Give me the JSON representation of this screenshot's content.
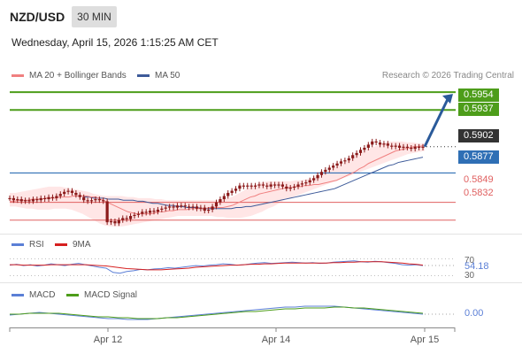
{
  "header": {
    "pair": "NZD/USD",
    "timeframe": "30 MIN",
    "datetime": "Wednesday, April 15, 2026 1:15:25 AM CET"
  },
  "legend": {
    "ma20_label": "MA 20 + Bollinger Bands",
    "ma50_label": "MA 50",
    "credit": "Research © 2026 Trading Central",
    "rsi_label": "RSI",
    "rsi_ma_label": "9MA",
    "macd_label": "MACD",
    "macd_signal_label": "MACD Signal"
  },
  "colors": {
    "ma20": "#f08080",
    "ma50": "#3d5a99",
    "bollinger_fill": "#ffe2e2",
    "resistance": "#4d9d1a",
    "pivot": "#2f6fb5",
    "support": "#e06060",
    "candle": "#8b1a1a",
    "arrow": "#2a5a9a",
    "rsi": "#5b7fd6",
    "rsi_ma": "#d62020",
    "macd": "#5b7fd6",
    "macd_signal": "#4d9d1a"
  },
  "levels": {
    "resistance_2": "0.5954",
    "resistance_1": "0.5937",
    "last_price": "0.5902",
    "pivot": "0.5877",
    "support_1": "0.5849",
    "support_2": "0.5832"
  },
  "indicators": {
    "rsi_value": "54.18",
    "rsi_upper": "70",
    "rsi_lower": "30",
    "macd_value": "0.00"
  },
  "x_axis": {
    "labels": [
      "Apr 12",
      "Apr 14",
      "Apr 15"
    ]
  },
  "chart_data": {
    "type": "line",
    "title": "NZD/USD",
    "subtitle": "30 MIN",
    "ylim": [
      0.582,
      0.596
    ],
    "price_close": [
      0.5853,
      0.5851,
      0.5852,
      0.585,
      0.5851,
      0.585,
      0.5852,
      0.5851,
      0.5853,
      0.5852,
      0.5854,
      0.5853,
      0.5855,
      0.5857,
      0.5859,
      0.586,
      0.5858,
      0.5856,
      0.5854,
      0.5851,
      0.585,
      0.5851,
      0.5852,
      0.5851,
      0.585,
      0.583,
      0.5831,
      0.5829,
      0.5832,
      0.5834,
      0.5833,
      0.5836,
      0.5837,
      0.5838,
      0.584,
      0.5839,
      0.5841,
      0.584,
      0.5842,
      0.5843,
      0.5844,
      0.5845,
      0.5844,
      0.5846,
      0.5846,
      0.5845,
      0.5844,
      0.5845,
      0.5843,
      0.5844,
      0.5841,
      0.5842,
      0.5845,
      0.5849,
      0.5852,
      0.5855,
      0.5858,
      0.586,
      0.5862,
      0.5865,
      0.5864,
      0.5865,
      0.5864,
      0.5865,
      0.5866,
      0.5865,
      0.5864,
      0.5866,
      0.5865,
      0.5866,
      0.5864,
      0.5862,
      0.5863,
      0.5864,
      0.5866,
      0.5867,
      0.5868,
      0.587,
      0.5872,
      0.5875,
      0.5878,
      0.588,
      0.5882,
      0.5884,
      0.5886,
      0.5888,
      0.5889,
      0.5891,
      0.5894,
      0.5896,
      0.5899,
      0.5901,
      0.5904,
      0.5907,
      0.5906,
      0.5904,
      0.5905,
      0.5903,
      0.5902,
      0.5903,
      0.5901,
      0.5902,
      0.5901,
      0.59,
      0.5902,
      0.5901,
      0.5902
    ],
    "ma20": [
      0.585,
      0.585,
      0.5851,
      0.5851,
      0.5851,
      0.5852,
      0.5852,
      0.5852,
      0.5853,
      0.5853,
      0.5853,
      0.5854,
      0.5854,
      0.5854,
      0.5855,
      0.5855,
      0.5855,
      0.5855,
      0.5854,
      0.5854,
      0.5852,
      0.585,
      0.5848,
      0.5846,
      0.5844,
      0.5842,
      0.584,
      0.5839,
      0.5838,
      0.5838,
      0.5838,
      0.5838,
      0.5839,
      0.584,
      0.584,
      0.5841,
      0.5841,
      0.5842,
      0.5842,
      0.5842,
      0.5843,
      0.5843,
      0.5843,
      0.5843,
      0.5844,
      0.5844,
      0.5844,
      0.5844,
      0.5845,
      0.5846,
      0.5848,
      0.585,
      0.5852,
      0.5854,
      0.5855,
      0.5857,
      0.5858,
      0.5859,
      0.586,
      0.5861,
      0.5862,
      0.5863,
      0.5863,
      0.5864,
      0.5864,
      0.5865,
      0.5865,
      0.5866,
      0.5866,
      0.5867,
      0.5868,
      0.5869,
      0.587,
      0.5872,
      0.5874,
      0.5876,
      0.5878,
      0.5881,
      0.5883,
      0.5886,
      0.5888,
      0.589,
      0.5892,
      0.5894,
      0.5896,
      0.5898,
      0.5899,
      0.59,
      0.5901,
      0.5902,
      0.5902,
      0.5903
    ],
    "ma50": [
      0.5854,
      0.5854,
      0.5853,
      0.5853,
      0.5853,
      0.5852,
      0.5852,
      0.5852,
      0.5851,
      0.5851,
      0.5851,
      0.585,
      0.585,
      0.5849,
      0.5848,
      0.5848,
      0.5847,
      0.5846,
      0.5846,
      0.5845,
      0.5845,
      0.5844,
      0.5844,
      0.5844,
      0.5843,
      0.5843,
      0.5843,
      0.5843,
      0.5843,
      0.5843,
      0.5843,
      0.5844,
      0.5844,
      0.5845,
      0.5845,
      0.5846,
      0.5847,
      0.5848,
      0.5849,
      0.585,
      0.5851,
      0.5852,
      0.5853,
      0.5854,
      0.5855,
      0.5856,
      0.5857,
      0.5858,
      0.5859,
      0.586,
      0.5861,
      0.5862,
      0.5864,
      0.5866,
      0.5868,
      0.587,
      0.5872,
      0.5874,
      0.5876,
      0.5878,
      0.588,
      0.5882,
      0.5884,
      0.5885,
      0.5887,
      0.5888,
      0.5889,
      0.589,
      0.5891,
      0.5892
    ],
    "bb_upper": [
      0.5858,
      0.5858,
      0.5859,
      0.586,
      0.5861,
      0.5862,
      0.5863,
      0.5864,
      0.5864,
      0.5864,
      0.5863,
      0.5862,
      0.5861,
      0.586,
      0.5859,
      0.5857,
      0.5856,
      0.5855,
      0.5855,
      0.5855,
      0.5855,
      0.5854,
      0.5854,
      0.5853,
      0.5853,
      0.5853,
      0.5852,
      0.5852,
      0.5851,
      0.5851,
      0.5851,
      0.5851,
      0.5851,
      0.5851,
      0.5851,
      0.5851,
      0.5851,
      0.5851,
      0.5852,
      0.5853,
      0.5855,
      0.5858,
      0.5861,
      0.5864,
      0.5866,
      0.5868,
      0.5869,
      0.5869,
      0.5869,
      0.5869,
      0.5869,
      0.587,
      0.587,
      0.5871,
      0.5872,
      0.5874,
      0.5876,
      0.5879,
      0.5882,
      0.5885,
      0.5888,
      0.5891,
      0.5894,
      0.5897,
      0.59,
      0.5902,
      0.5904,
      0.5906,
      0.5907,
      0.5907,
      0.5907,
      0.5906,
      0.5906,
      0.5905,
      0.5905
    ],
    "bb_lower": [
      0.5845,
      0.5845,
      0.5844,
      0.5843,
      0.5843,
      0.5842,
      0.5842,
      0.5842,
      0.5843,
      0.5843,
      0.5843,
      0.5842,
      0.584,
      0.5838,
      0.5835,
      0.5832,
      0.5829,
      0.5827,
      0.5826,
      0.5826,
      0.5826,
      0.5827,
      0.5828,
      0.5829,
      0.583,
      0.5831,
      0.5832,
      0.5833,
      0.5834,
      0.5835,
      0.5836,
      0.5836,
      0.5836,
      0.5836,
      0.5836,
      0.5836,
      0.5836,
      0.5835,
      0.5835,
      0.5834,
      0.5834,
      0.5834,
      0.5835,
      0.5836,
      0.5838,
      0.584,
      0.5843,
      0.5845,
      0.5848,
      0.5851,
      0.5853,
      0.5855,
      0.5857,
      0.5859,
      0.5861,
      0.5863,
      0.5865,
      0.5867,
      0.5869,
      0.5871,
      0.5873,
      0.5875,
      0.5877,
      0.5879,
      0.5881,
      0.5883,
      0.5885,
      0.5887,
      0.5889,
      0.5891,
      0.5893,
      0.5895,
      0.5896,
      0.5897,
      0.5898
    ],
    "rsi": [
      55,
      57,
      54,
      56,
      53,
      55,
      58,
      56,
      54,
      57,
      59,
      56,
      53,
      50,
      48,
      38,
      36,
      40,
      42,
      45,
      44,
      46,
      47,
      49,
      48,
      50,
      52,
      54,
      53,
      55,
      56,
      58,
      57,
      55,
      56,
      58,
      60,
      61,
      59,
      60,
      61,
      62,
      61,
      60,
      61,
      59,
      60,
      62,
      63,
      64,
      65,
      63,
      62,
      64,
      63,
      61,
      59,
      56,
      55,
      56,
      54
    ],
    "rsi_ma": [
      56,
      56,
      55,
      55,
      55,
      55,
      56,
      56,
      56,
      56,
      56,
      56,
      55,
      54,
      53,
      51,
      49,
      47,
      46,
      45,
      44,
      44,
      44,
      45,
      46,
      47,
      48,
      50,
      51,
      52,
      53,
      54,
      55,
      55,
      56,
      57,
      57,
      58,
      58,
      59,
      60,
      60,
      60,
      60,
      60,
      60,
      60,
      61,
      61,
      62,
      62,
      63,
      63,
      63,
      63,
      62,
      61,
      60,
      58,
      57,
      55
    ],
    "macd": [
      -0.0001,
      0.0,
      0.0001,
      0.0002,
      0.0001,
      0.0,
      -0.0001,
      -0.0002,
      -0.0003,
      -0.0004,
      -0.0005,
      -0.0005,
      -0.0006,
      -0.0006,
      -0.0006,
      -0.0005,
      -0.0004,
      -0.0003,
      -0.0002,
      -0.0001,
      0.0,
      0.0001,
      0.0002,
      0.0003,
      0.0004,
      0.0005,
      0.0006,
      0.0007,
      0.0008,
      0.0008,
      0.0009,
      0.0009,
      0.0009,
      0.0009,
      0.0008,
      0.0007,
      0.0006,
      0.0005,
      0.0004,
      0.0003,
      0.0002,
      0.0001,
      0.0
    ],
    "macd_signal": [
      0.0,
      0.0,
      0.0001,
      0.0001,
      0.0001,
      0.0001,
      0.0,
      -0.0001,
      -0.0002,
      -0.0003,
      -0.0003,
      -0.0004,
      -0.0004,
      -0.0005,
      -0.0005,
      -0.0005,
      -0.0004,
      -0.0004,
      -0.0003,
      -0.0002,
      -0.0001,
      0.0,
      0.0001,
      0.0002,
      0.0003,
      0.0003,
      0.0004,
      0.0005,
      0.0006,
      0.0006,
      0.0007,
      0.0007,
      0.0007,
      0.0008,
      0.0008,
      0.0007,
      0.0007,
      0.0006,
      0.0005,
      0.0004,
      0.0003,
      0.0002,
      0.0001
    ]
  }
}
